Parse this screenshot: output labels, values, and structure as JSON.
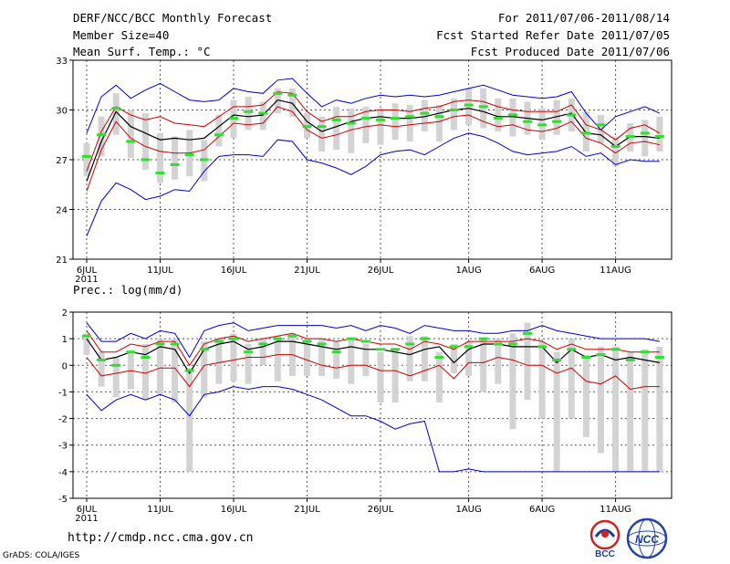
{
  "header": {
    "title": "DERF/NCC/BCC Monthly Forecast",
    "members": "Member Size=40",
    "variable": "Mean Surf. Temp.: °C",
    "period": "For 2011/07/06-2011/08/14",
    "refer_date": "Fcst Started Refer Date 2011/07/05",
    "produced_date": "Fcst Produced Date 2011/07/06"
  },
  "footer": {
    "url": "http://cmdp.ncc.cma.gov.cn",
    "credit": "GrADS: COLA/IGES"
  },
  "logos": {
    "bcc": "BCC",
    "ncc": "NCC"
  },
  "colors": {
    "envelope": "#0000cc",
    "spread": "#cc0000",
    "mean": "#000000",
    "box": "#d3d3d3",
    "median": "#33dd33",
    "grid": "#555555"
  },
  "chart_data": [
    {
      "type": "line",
      "name": "temperature",
      "title": "Mean Surf. Temp.: °C",
      "xlabel": "",
      "ylabel": "°C",
      "ylim": [
        21,
        33
      ],
      "yticks": [
        21,
        24,
        27,
        30,
        33
      ],
      "grid": true,
      "x_tick_days": [
        0,
        5,
        10,
        15,
        20,
        26,
        31,
        36
      ],
      "x_tick_labels": [
        "6JUL",
        "11JUL",
        "16JUL",
        "21JUL",
        "26JUL",
        "1AUG",
        "6AUG",
        "11AUG"
      ],
      "x_year_label": "2011",
      "n_days": 40,
      "series": [
        {
          "name": "ensemble max",
          "values": [
            28.6,
            30.8,
            31.5,
            30.7,
            31.2,
            31.6,
            31.1,
            30.6,
            30.5,
            30.6,
            31.3,
            31.1,
            31.0,
            31.8,
            31.9,
            31.0,
            30.2,
            30.6,
            30.4,
            30.7,
            30.9,
            30.8,
            30.9,
            30.8,
            30.9,
            31.1,
            31.3,
            31.5,
            31.2,
            30.9,
            30.8,
            30.7,
            30.8,
            31.1,
            29.8,
            28.8,
            29.6,
            29.9,
            30.2,
            29.8
          ]
        },
        {
          "name": "mean plus spread",
          "values": [
            26.3,
            28.7,
            30.2,
            29.7,
            29.4,
            29.6,
            29.2,
            29.1,
            29.0,
            29.6,
            30.2,
            30.2,
            30.3,
            31.1,
            31.0,
            29.9,
            29.3,
            29.6,
            29.6,
            29.9,
            30.0,
            30.0,
            29.9,
            30.1,
            30.2,
            30.5,
            30.6,
            30.5,
            30.2,
            30.0,
            29.9,
            29.9,
            29.9,
            30.3,
            29.1,
            28.8,
            28.2,
            28.9,
            29.1,
            28.6
          ]
        },
        {
          "name": "ensemble mean",
          "values": [
            25.7,
            28.1,
            29.9,
            29.0,
            28.6,
            28.2,
            28.3,
            28.2,
            28.3,
            29.0,
            29.7,
            29.6,
            29.7,
            30.6,
            30.4,
            29.3,
            28.7,
            29.0,
            29.3,
            29.5,
            29.6,
            29.5,
            29.5,
            29.6,
            29.8,
            30.0,
            30.1,
            29.9,
            29.6,
            29.6,
            29.5,
            29.4,
            29.6,
            29.8,
            28.6,
            28.5,
            27.8,
            28.4,
            28.4,
            28.3
          ]
        },
        {
          "name": "mean minus spread",
          "values": [
            25.1,
            27.6,
            29.3,
            28.3,
            27.8,
            27.5,
            27.4,
            27.4,
            27.6,
            28.4,
            29.2,
            29.1,
            29.2,
            30.2,
            29.9,
            28.8,
            28.3,
            28.5,
            28.8,
            29.0,
            29.1,
            29.0,
            29.1,
            29.2,
            29.3,
            29.6,
            29.7,
            29.3,
            29.0,
            29.1,
            28.8,
            28.7,
            28.9,
            29.3,
            28.3,
            28.0,
            27.4,
            28.0,
            28.1,
            27.9
          ]
        },
        {
          "name": "ensemble min",
          "values": [
            22.4,
            24.5,
            25.6,
            25.2,
            24.6,
            24.8,
            25.2,
            25.1,
            26.3,
            27.2,
            27.3,
            27.3,
            27.2,
            28.2,
            28.1,
            27.0,
            26.8,
            26.5,
            26.1,
            26.6,
            27.3,
            27.5,
            27.6,
            27.3,
            27.8,
            28.3,
            28.6,
            28.4,
            28.0,
            27.5,
            27.3,
            27.4,
            27.5,
            27.8,
            27.2,
            27.4,
            26.7,
            27.0,
            26.9,
            26.9
          ]
        }
      ],
      "boxes_lo": [
        26.0,
        27.2,
        28.5,
        27.1,
        26.4,
        25.6,
        25.8,
        26.0,
        25.7,
        27.8,
        28.3,
        28.8,
        28.8,
        29.8,
        29.6,
        28.3,
        27.5,
        27.6,
        27.4,
        28.0,
        27.9,
        28.2,
        28.1,
        28.7,
        28.1,
        28.8,
        29.1,
        28.9,
        28.7,
        28.4,
        28.5,
        28.2,
        28.5,
        28.7,
        27.5,
        28.0,
        26.6,
        27.5,
        27.2,
        27.5
      ],
      "boxes_hi": [
        28.0,
        29.6,
        31.0,
        30.0,
        29.8,
        28.6,
        28.4,
        28.8,
        28.2,
        29.7,
        30.6,
        30.8,
        30.5,
        31.3,
        31.3,
        29.8,
        29.6,
        30.2,
        30.1,
        30.2,
        30.1,
        30.4,
        30.3,
        30.6,
        30.3,
        30.7,
        31.3,
        31.3,
        30.7,
        30.7,
        30.5,
        30.1,
        30.6,
        30.7,
        29.9,
        29.7,
        28.4,
        29.2,
        29.4,
        29.6
      ],
      "medians": [
        27.2,
        28.5,
        30.1,
        28.1,
        27.0,
        26.2,
        26.7,
        27.3,
        27.0,
        28.5,
        29.5,
        29.9,
        29.8,
        31.0,
        30.9,
        29.0,
        29.0,
        29.4,
        29.2,
        29.5,
        29.4,
        29.5,
        29.6,
        29.8,
        29.6,
        30.0,
        30.3,
        30.2,
        29.5,
        29.7,
        29.3,
        29.1,
        29.3,
        29.7,
        28.6,
        29.1,
        27.8,
        28.4,
        28.6,
        28.4
      ]
    },
    {
      "type": "line",
      "name": "precipitation",
      "title": "Prec.: log(mm/d)",
      "xlabel": "",
      "ylabel": "log(mm/d)",
      "ylim": [
        -5,
        2
      ],
      "yticks": [
        -5,
        -4,
        -3,
        -2,
        -1,
        0,
        1,
        2
      ],
      "grid": true,
      "x_tick_days": [
        0,
        5,
        10,
        15,
        20,
        26,
        31,
        36
      ],
      "x_tick_labels": [
        "6JUL",
        "11JUL",
        "16JUL",
        "21JUL",
        "26JUL",
        "1AUG",
        "6AUG",
        "11AUG"
      ],
      "x_year_label": "2011",
      "n_days": 40,
      "series": [
        {
          "name": "ensemble max",
          "values": [
            1.6,
            0.9,
            0.9,
            1.2,
            1.0,
            1.3,
            1.2,
            0.3,
            1.3,
            1.5,
            1.6,
            1.3,
            1.4,
            1.5,
            1.5,
            1.5,
            1.5,
            1.4,
            1.5,
            1.3,
            1.5,
            1.4,
            1.2,
            1.5,
            1.4,
            1.3,
            1.3,
            1.2,
            1.2,
            1.3,
            1.3,
            1.5,
            1.3,
            1.2,
            1.1,
            1.0,
            1.0,
            1.0,
            1.0,
            0.9
          ]
        },
        {
          "name": "mean plus spread",
          "values": [
            1.3,
            0.5,
            0.5,
            0.8,
            0.7,
            0.9,
            0.9,
            0.0,
            0.8,
            1.0,
            1.1,
            0.9,
            1.0,
            1.1,
            1.2,
            1.0,
            1.0,
            0.9,
            1.0,
            0.9,
            0.8,
            0.8,
            0.6,
            0.9,
            0.8,
            0.6,
            0.9,
            0.9,
            0.9,
            0.9,
            1.0,
            0.9,
            0.6,
            0.8,
            0.6,
            0.6,
            0.6,
            0.5,
            0.5,
            0.5
          ]
        },
        {
          "name": "ensemble mean",
          "values": [
            1.0,
            0.2,
            0.3,
            0.5,
            0.4,
            0.7,
            0.6,
            -0.3,
            0.6,
            0.8,
            0.9,
            0.6,
            0.7,
            0.9,
            0.9,
            0.8,
            0.7,
            0.6,
            0.7,
            0.6,
            0.6,
            0.5,
            0.4,
            0.6,
            0.7,
            0.1,
            0.6,
            0.8,
            0.8,
            0.7,
            0.7,
            0.7,
            0.1,
            0.6,
            0.3,
            0.4,
            0.2,
            0.3,
            0.2,
            0.1
          ]
        },
        {
          "name": "mean minus spread",
          "values": [
            0.3,
            -0.4,
            -0.3,
            -0.2,
            -0.3,
            -0.1,
            -0.1,
            -0.8,
            0.0,
            0.1,
            0.2,
            0.3,
            0.3,
            0.4,
            0.4,
            0.2,
            0.0,
            -0.1,
            0.0,
            0.0,
            -0.2,
            -0.2,
            -0.4,
            -0.2,
            0.0,
            -0.5,
            0.1,
            0.1,
            0.3,
            0.2,
            0.0,
            0.0,
            -0.3,
            -0.1,
            -0.6,
            -0.7,
            -0.4,
            -0.9,
            -0.8,
            -0.8
          ]
        },
        {
          "name": "ensemble min",
          "values": [
            -1.1,
            -1.7,
            -1.3,
            -1.1,
            -1.3,
            -1.1,
            -1.3,
            -1.9,
            -1.1,
            -1.0,
            -0.8,
            -0.9,
            -0.8,
            -0.8,
            -0.9,
            -1.1,
            -1.3,
            -1.6,
            -1.9,
            -1.9,
            -2.1,
            -2.4,
            -2.2,
            -2.1,
            -4.0,
            -4.0,
            -3.9,
            -4.0,
            -4.0,
            -4.0,
            -4.0,
            -4.0,
            -4.0,
            -4.0,
            -4.0,
            -4.0,
            -4.0,
            -4.0,
            -4.0,
            -4.0
          ]
        }
      ],
      "boxes_lo": [
        0.4,
        -0.8,
        -1.2,
        -0.9,
        -1.3,
        -1.1,
        -1.4,
        -4.0,
        -1.2,
        -0.7,
        -0.6,
        -0.7,
        0.0,
        -0.6,
        -0.4,
        -0.4,
        -0.4,
        -0.5,
        -0.7,
        -0.4,
        -1.4,
        -1.4,
        -0.6,
        -0.6,
        -1.4,
        -0.3,
        -0.4,
        -1.0,
        -0.7,
        -2.4,
        -1.3,
        -2.0,
        -4.0,
        -2.0,
        -2.7,
        -3.3,
        -4.0,
        -4.0,
        -4.0,
        -4.0
      ],
      "boxes_hi": [
        1.2,
        0.5,
        0.3,
        0.5,
        0.8,
        1.0,
        1.0,
        -0.1,
        0.9,
        1.0,
        1.2,
        0.8,
        1.0,
        1.1,
        1.2,
        1.0,
        1.0,
        0.9,
        1.0,
        0.8,
        0.5,
        0.6,
        1.1,
        1.1,
        0.5,
        0.8,
        0.9,
        1.0,
        1.0,
        1.2,
        1.6,
        0.9,
        0.5,
        1.0,
        0.4,
        0.7,
        0.7,
        0.5,
        0.6,
        0.7
      ],
      "medians": [
        1.1,
        0.2,
        0.0,
        0.5,
        0.3,
        0.8,
        0.8,
        -0.2,
        0.6,
        0.9,
        1.0,
        0.5,
        0.8,
        1.0,
        1.1,
        0.9,
        0.8,
        0.5,
        1.0,
        0.9,
        0.6,
        0.6,
        0.8,
        1.0,
        0.3,
        0.7,
        0.7,
        1.0,
        0.8,
        0.8,
        1.2,
        0.7,
        0.2,
        0.6,
        0.3,
        0.4,
        0.6,
        0.2,
        0.5,
        0.3
      ]
    }
  ]
}
